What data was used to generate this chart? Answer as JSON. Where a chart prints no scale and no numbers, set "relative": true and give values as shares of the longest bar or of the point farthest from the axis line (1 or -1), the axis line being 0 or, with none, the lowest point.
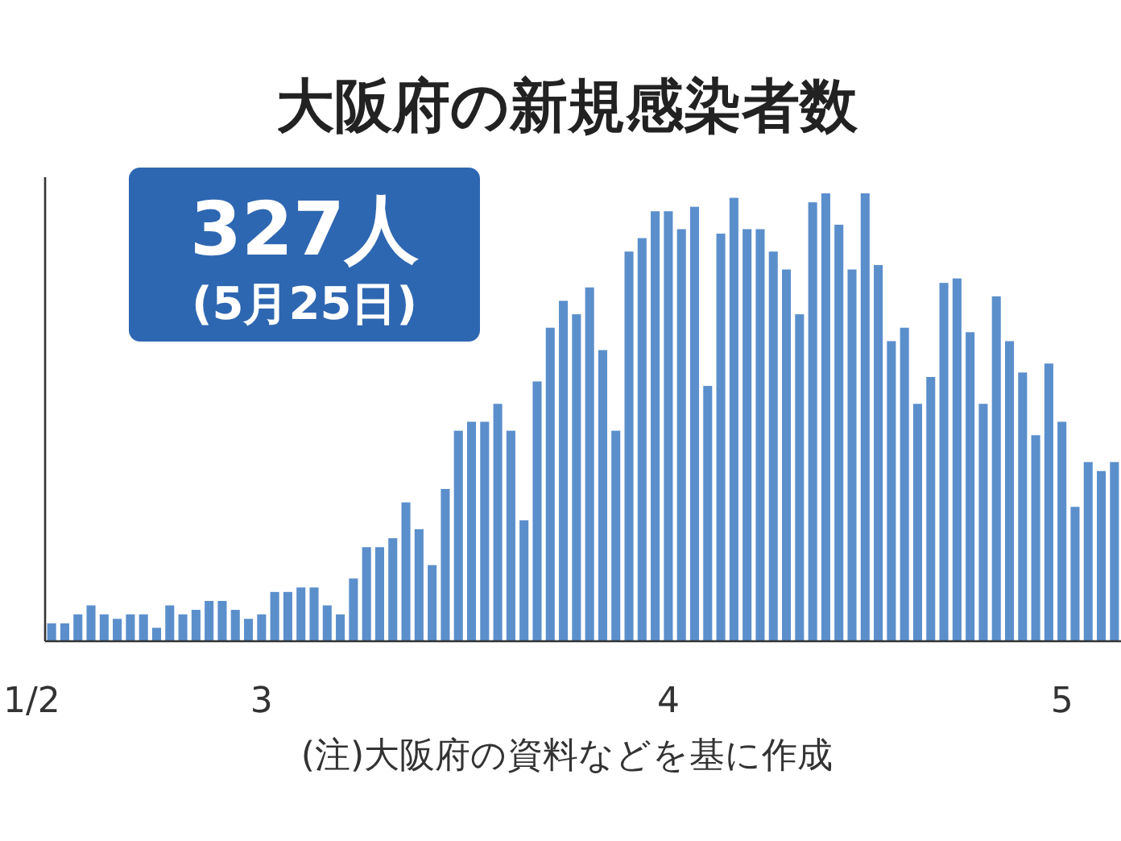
{
  "chart_data": {
    "type": "bar",
    "title": "大阪府の新規感染者数",
    "relative": true,
    "color": "#5b8fcc",
    "annotations": [
      "327人",
      "(5月25日)",
      "(注)大阪府の資料などを基に作成",
      "1/2"
    ],
    "categories": [
      null,
      null,
      null,
      null,
      null,
      null,
      null,
      null,
      null,
      null,
      null,
      null,
      null,
      null,
      null,
      null,
      "3",
      null,
      null,
      null,
      null,
      null,
      null,
      null,
      null,
      null,
      null,
      null,
      null,
      null,
      null,
      null,
      null,
      null,
      null,
      null,
      null,
      null,
      null,
      null,
      null,
      null,
      null,
      null,
      null,
      null,
      null,
      "4",
      null,
      null,
      null,
      null,
      null,
      null,
      null,
      null,
      null,
      null,
      null,
      null,
      null,
      null,
      null,
      null,
      null,
      null,
      null,
      null,
      null,
      null,
      null,
      null,
      null,
      null,
      null,
      null,
      null,
      "5",
      null,
      null,
      null,
      null
    ],
    "values": [
      0.04,
      0.04,
      0.06,
      0.08,
      0.06,
      0.05,
      0.06,
      0.06,
      0.03,
      0.08,
      0.06,
      0.07,
      0.09,
      0.09,
      0.07,
      0.05,
      0.06,
      0.11,
      0.11,
      0.12,
      0.12,
      0.08,
      0.06,
      0.14,
      0.21,
      0.21,
      0.23,
      0.31,
      0.25,
      0.17,
      0.34,
      0.47,
      0.49,
      0.49,
      0.53,
      0.47,
      0.27,
      0.58,
      0.7,
      0.76,
      0.73,
      0.79,
      0.65,
      0.47,
      0.87,
      0.9,
      0.96,
      0.96,
      0.92,
      0.97,
      0.57,
      0.91,
      0.99,
      0.92,
      0.92,
      0.87,
      0.83,
      0.73,
      0.98,
      1,
      0.93,
      0.83,
      1,
      0.84,
      0.67,
      0.7,
      0.53,
      0.59,
      0.8,
      0.81,
      0.69,
      0.53,
      0.77,
      0.67,
      0.6,
      0.46,
      0.62,
      0.49,
      0.3,
      0.4,
      0.38,
      0.4
    ]
  }
}
